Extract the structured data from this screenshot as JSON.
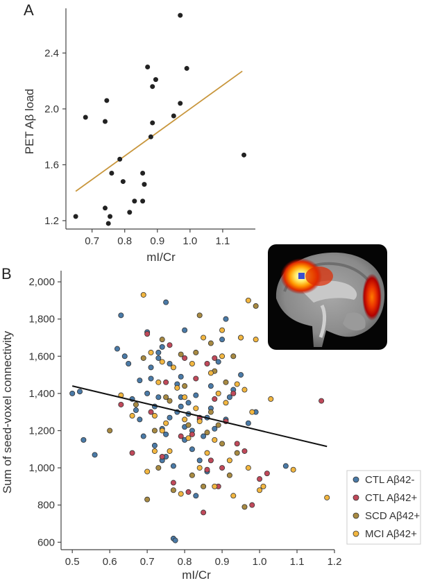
{
  "chart_data": [
    {
      "panel": "A",
      "type": "scatter",
      "xlabel": "mI/Cr",
      "ylabel": "PET Aβ load",
      "xlim": [
        0.62,
        1.2
      ],
      "ylim": [
        1.14,
        2.72
      ],
      "xticks": [
        "0.7",
        "0.8",
        "0.9",
        "1.0",
        "1.1"
      ],
      "xtick_values": [
        0.7,
        0.8,
        0.9,
        1.0,
        1.1
      ],
      "yticks": [
        "1.2",
        "1.6",
        "2.0",
        "2.4"
      ],
      "ytick_values": [
        1.2,
        1.6,
        2.0,
        2.4
      ],
      "point_color": "#222222",
      "fit_color": "#c8963c",
      "fit_line": [
        [
          0.65,
          1.41
        ],
        [
          1.16,
          2.27
        ]
      ],
      "points": [
        [
          0.65,
          1.23
        ],
        [
          0.68,
          1.94
        ],
        [
          0.74,
          1.91
        ],
        [
          0.745,
          2.06
        ],
        [
          0.74,
          1.29
        ],
        [
          0.75,
          1.18
        ],
        [
          0.755,
          1.23
        ],
        [
          0.76,
          1.54
        ],
        [
          0.785,
          1.64
        ],
        [
          0.795,
          1.48
        ],
        [
          0.815,
          1.26
        ],
        [
          0.83,
          1.34
        ],
        [
          0.855,
          1.34
        ],
        [
          0.855,
          1.54
        ],
        [
          0.86,
          1.46
        ],
        [
          0.87,
          2.3
        ],
        [
          0.88,
          1.8
        ],
        [
          0.885,
          1.9
        ],
        [
          0.885,
          2.16
        ],
        [
          0.895,
          2.21
        ],
        [
          0.95,
          1.95
        ],
        [
          0.97,
          2.04
        ],
        [
          0.97,
          2.67
        ],
        [
          0.99,
          2.29
        ],
        [
          1.165,
          1.67
        ]
      ]
    },
    {
      "panel": "B",
      "type": "scatter",
      "xlabel": "mI/Cr",
      "ylabel": "Sum of seed-voxel connectivity",
      "xlim": [
        0.47,
        1.2
      ],
      "ylim": [
        560,
        2060
      ],
      "xticks": [
        "0.5",
        "0.6",
        "0.7",
        "0.8",
        "0.9",
        "1.0",
        "1.1",
        "1.2"
      ],
      "xtick_values": [
        0.5,
        0.6,
        0.7,
        0.8,
        0.9,
        1.0,
        1.1,
        1.2
      ],
      "yticks": [
        "600",
        "800",
        "1,000",
        "1,200",
        "1,400",
        "1,600",
        "1,800",
        "2,000"
      ],
      "ytick_values": [
        600,
        800,
        1000,
        1200,
        1400,
        1600,
        1800,
        2000
      ],
      "fit_color": "#111111",
      "fit_line": [
        [
          0.5,
          1440
        ],
        [
          1.18,
          1115
        ]
      ],
      "series": [
        {
          "name": "CTL Aβ42-",
          "color": "#4a7aa7",
          "points": [
            [
              0.5,
              1400
            ],
            [
              0.52,
              1410
            ],
            [
              0.56,
              1070
            ],
            [
              0.53,
              1150
            ],
            [
              0.62,
              1640
            ],
            [
              0.63,
              1820
            ],
            [
              0.64,
              1600
            ],
            [
              0.65,
              1560
            ],
            [
              0.66,
              1370
            ],
            [
              0.67,
              1310
            ],
            [
              0.68,
              1470
            ],
            [
              0.68,
              1260
            ],
            [
              0.69,
              1170
            ],
            [
              0.7,
              1730
            ],
            [
              0.7,
              1400
            ],
            [
              0.71,
              1540
            ],
            [
              0.71,
              1480
            ],
            [
              0.72,
              1120
            ],
            [
              0.72,
              1330
            ],
            [
              0.73,
              1590
            ],
            [
              0.73,
              1620
            ],
            [
              0.74,
              1650
            ],
            [
              0.74,
              1210
            ],
            [
              0.75,
              1180
            ],
            [
              0.75,
              1060
            ],
            [
              0.75,
              1890
            ],
            [
              0.76,
              1560
            ],
            [
              0.76,
              1270
            ],
            [
              0.77,
              1010
            ],
            [
              0.78,
              1300
            ],
            [
              0.78,
              1450
            ],
            [
              0.79,
              1330
            ],
            [
              0.79,
              1490
            ],
            [
              0.8,
              1220
            ],
            [
              0.8,
              1150
            ],
            [
              0.81,
              1290
            ],
            [
              0.81,
              1350
            ],
            [
              0.82,
              1100
            ],
            [
              0.82,
              1200
            ],
            [
              0.83,
              1390
            ],
            [
              0.84,
              1260
            ],
            [
              0.84,
              1040
            ],
            [
              0.85,
              1170
            ],
            [
              0.86,
              1270
            ],
            [
              0.86,
              980
            ],
            [
              0.87,
              1440
            ],
            [
              0.88,
              1210
            ],
            [
              0.89,
              1570
            ],
            [
              0.9,
              1690
            ],
            [
              0.91,
              1260
            ],
            [
              0.92,
              1380
            ],
            [
              0.93,
              1420
            ],
            [
              0.95,
              1500
            ],
            [
              0.97,
              1240
            ],
            [
              0.99,
              1300
            ],
            [
              1.07,
              1010
            ],
            [
              0.8,
              1740
            ],
            [
              0.77,
              620
            ],
            [
              0.775,
              610
            ],
            [
              0.83,
              850
            ],
            [
              0.91,
              1800
            ],
            [
              0.79,
              1380
            ],
            [
              0.73,
              1380
            ],
            [
              0.87,
              1320
            ],
            [
              0.74,
              1040
            ]
          ]
        },
        {
          "name": "CTL Aβ42+",
          "color": "#c0495a",
          "points": [
            [
              0.63,
              1340
            ],
            [
              0.66,
              1080
            ],
            [
              0.7,
              1720
            ],
            [
              0.71,
              1300
            ],
            [
              0.74,
              1060
            ],
            [
              0.76,
              1660
            ],
            [
              0.77,
              920
            ],
            [
              0.8,
              1590
            ],
            [
              0.81,
              870
            ],
            [
              0.82,
              1180
            ],
            [
              0.84,
              1270
            ],
            [
              0.85,
              760
            ],
            [
              0.86,
              990
            ],
            [
              0.87,
              1040
            ],
            [
              0.88,
              1370
            ],
            [
              0.88,
              1590
            ],
            [
              0.9,
              1000
            ],
            [
              0.91,
              1250
            ],
            [
              0.93,
              1400
            ],
            [
              0.94,
              1130
            ],
            [
              0.96,
              1090
            ],
            [
              0.98,
              800
            ],
            [
              1.0,
              940
            ],
            [
              1.02,
              970
            ],
            [
              1.165,
              1360
            ],
            [
              0.79,
              1170
            ],
            [
              0.83,
              1480
            ],
            [
              0.89,
              900
            ],
            [
              0.75,
              1460
            ],
            [
              0.86,
              1560
            ]
          ]
        },
        {
          "name": "SCD Aβ42+",
          "color": "#a88a42",
          "points": [
            [
              0.6,
              1200
            ],
            [
              0.67,
              1340
            ],
            [
              0.69,
              1590
            ],
            [
              0.7,
              830
            ],
            [
              0.72,
              1200
            ],
            [
              0.73,
              1000
            ],
            [
              0.74,
              1690
            ],
            [
              0.75,
              1380
            ],
            [
              0.76,
              1360
            ],
            [
              0.77,
              880
            ],
            [
              0.79,
              1610
            ],
            [
              0.8,
              1440
            ],
            [
              0.82,
              960
            ],
            [
              0.83,
              1620
            ],
            [
              0.84,
              1820
            ],
            [
              0.85,
              900
            ],
            [
              0.86,
              1190
            ],
            [
              0.87,
              1670
            ],
            [
              0.88,
              1520
            ],
            [
              0.89,
              1230
            ],
            [
              0.9,
              1130
            ],
            [
              0.92,
              960
            ],
            [
              0.93,
              1600
            ],
            [
              0.95,
              1700
            ],
            [
              0.96,
              790
            ],
            [
              0.99,
              1870
            ],
            [
              0.91,
              1460
            ],
            [
              0.81,
              1230
            ],
            [
              0.87,
              1300
            ],
            [
              0.94,
              1080
            ]
          ]
        },
        {
          "name": "MCI Aβ42+",
          "color": "#f2b640",
          "points": [
            [
              0.63,
              1390
            ],
            [
              0.66,
              1280
            ],
            [
              0.69,
              1930
            ],
            [
              0.7,
              980
            ],
            [
              0.71,
              1620
            ],
            [
              0.72,
              1090
            ],
            [
              0.73,
              1460
            ],
            [
              0.74,
              1570
            ],
            [
              0.75,
              1240
            ],
            [
              0.76,
              1090
            ],
            [
              0.77,
              1540
            ],
            [
              0.78,
              1430
            ],
            [
              0.79,
              860
            ],
            [
              0.8,
              1380
            ],
            [
              0.81,
              1160
            ],
            [
              0.82,
              1560
            ],
            [
              0.83,
              1320
            ],
            [
              0.84,
              1250
            ],
            [
              0.85,
              1700
            ],
            [
              0.86,
              1080
            ],
            [
              0.87,
              1510
            ],
            [
              0.88,
              900
            ],
            [
              0.89,
              1400
            ],
            [
              0.9,
              1740
            ],
            [
              0.91,
              1350
            ],
            [
              0.92,
              1040
            ],
            [
              0.93,
              850
            ],
            [
              0.94,
              1450
            ],
            [
              0.95,
              1700
            ],
            [
              0.96,
              1420
            ],
            [
              0.97,
              1000
            ],
            [
              0.98,
              1300
            ],
            [
              0.99,
              1690
            ],
            [
              1.0,
              880
            ],
            [
              1.01,
              900
            ],
            [
              1.03,
              1370
            ],
            [
              1.09,
              990
            ],
            [
              1.18,
              840
            ],
            [
              0.97,
              1900
            ],
            [
              0.74,
              1200
            ],
            [
              0.72,
              1280
            ],
            [
              0.88,
              1150
            ],
            [
              0.84,
              1000
            ],
            [
              0.8,
              1260
            ],
            [
              0.9,
              1600
            ]
          ]
        }
      ]
    }
  ],
  "panel_letters": {
    "a": "A",
    "b": "B"
  },
  "legend": [
    {
      "label": "CTL Aβ42-",
      "color": "#4a7aa7"
    },
    {
      "label": "CTL Aβ42+",
      "color": "#c0495a"
    },
    {
      "label": "SCD Aβ42+",
      "color": "#a88a42"
    },
    {
      "label": "MCI Aβ42+",
      "color": "#f2b640"
    }
  ],
  "brain_inset": {
    "seed_color": "#3a4fd0",
    "hot_colors": [
      "#ffffff",
      "#ffe050",
      "#ff8a00",
      "#e02000",
      "#a00000"
    ]
  }
}
